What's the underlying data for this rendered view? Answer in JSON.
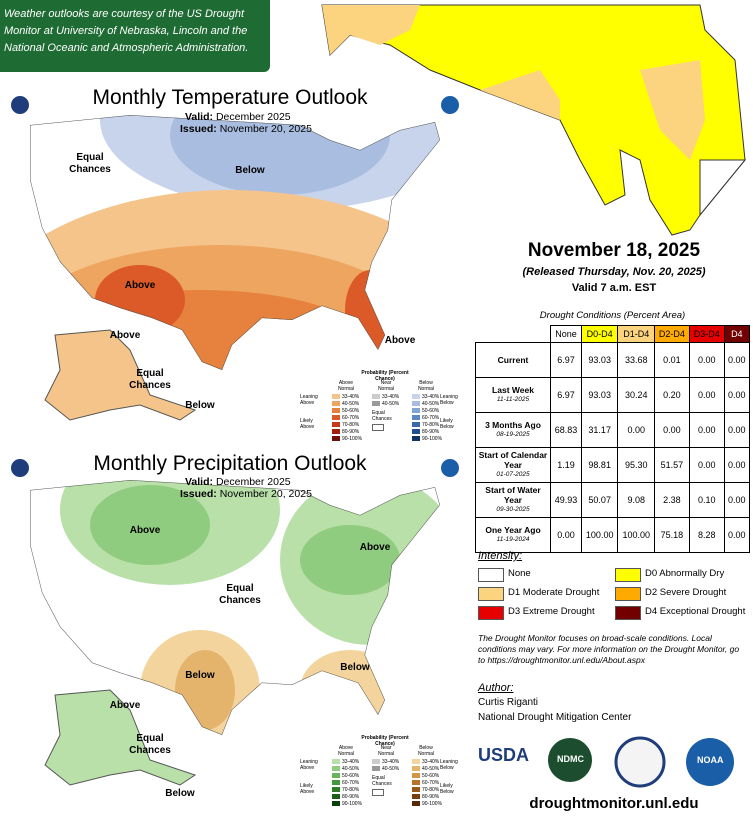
{
  "banner": "Weather outlooks are courtesy of the US Drought Monitor at University of Nebraska, Lincoln and the National Oceanic and Atmospheric Administration.",
  "outlook_legend": {
    "title": "Probability (Percent Chance)",
    "columns": [
      "Above Normal",
      "Near Normal",
      "Below Normal"
    ],
    "above_ranges": [
      "33-40%",
      "40-50%",
      "50-60%",
      "60-70%",
      "70-80%",
      "80-90%",
      "90-100%"
    ],
    "near_ranges": [
      "33-40%",
      "40-50%"
    ],
    "below_ranges": [
      "33-40%",
      "40-50%",
      "50-60%",
      "60-70%",
      "70-80%",
      "80-90%",
      "90-100%"
    ],
    "equal": "Equal Chances",
    "leaning_above": "Leaning Above",
    "likely_above": "Likely Above",
    "leaning_below": "Leaning Below",
    "likely_below": "Likely Below"
  },
  "temperature": {
    "title": "Monthly Temperature Outlook",
    "valid_label": "Valid:",
    "valid": "December 2025",
    "issued_label": "Issued:",
    "issued": "November 20, 2025",
    "labels": [
      "Equal Chances",
      "Below",
      "Above",
      "Above",
      "Equal Chances",
      "Above",
      "Below"
    ],
    "legend_colors": {
      "above": [
        "#f4c48a",
        "#eea560",
        "#e6823d",
        "#dc5a28",
        "#c8391a",
        "#a02010",
        "#701008"
      ],
      "near": [
        "#cccccc",
        "#999999"
      ],
      "below": [
        "#c8d4ec",
        "#a8bde0",
        "#84a4d4",
        "#5c88c4",
        "#3a6aae",
        "#22508e",
        "#103466"
      ]
    }
  },
  "precipitation": {
    "title": "Monthly Precipitation Outlook",
    "valid_label": "Valid:",
    "valid": "December 2025",
    "issued_label": "Issued:",
    "issued": "November 20, 2025",
    "labels": [
      "Above",
      "Above",
      "Equal Chances",
      "Below",
      "Below",
      "Above",
      "Equal Chances",
      "Below"
    ],
    "legend_colors": {
      "above": [
        "#b8e0a8",
        "#90cc80",
        "#68b45c",
        "#46983e",
        "#2e7a28",
        "#1c5e18",
        "#0c400a"
      ],
      "near": [
        "#cccccc",
        "#999999"
      ],
      "below": [
        "#f2d49c",
        "#e4b46c",
        "#d49444",
        "#b87428",
        "#985818",
        "#783e0c",
        "#582806"
      ]
    }
  },
  "drought": {
    "date": "November 18, 2025",
    "released": "(Released Thursday, Nov. 20, 2025)",
    "valid": "Valid 7 a.m. EST",
    "table_title": "Drought Conditions (Percent Area)",
    "headers": [
      "None",
      "D0-D4",
      "D1-D4",
      "D2-D4",
      "D3-D4",
      "D4"
    ],
    "rows": [
      {
        "label": "Current",
        "values": [
          "6.97",
          "93.03",
          "33.68",
          "0.01",
          "0.00",
          "0.00"
        ]
      },
      {
        "label": "Last Week",
        "date": "11-11-2025",
        "values": [
          "6.97",
          "93.03",
          "30.24",
          "0.20",
          "0.00",
          "0.00"
        ]
      },
      {
        "label": "3 Months Ago",
        "date": "08-19-2025",
        "values": [
          "68.83",
          "31.17",
          "0.00",
          "0.00",
          "0.00",
          "0.00"
        ]
      },
      {
        "label": "Start of Calendar Year",
        "date": "01-07-2025",
        "values": [
          "1.19",
          "98.81",
          "95.30",
          "51.57",
          "0.00",
          "0.00"
        ]
      },
      {
        "label": "Start of Water Year",
        "date": "09-30-2025",
        "values": [
          "49.93",
          "50.07",
          "9.08",
          "2.38",
          "0.10",
          "0.00"
        ]
      },
      {
        "label": "One Year Ago",
        "date": "11-19-2024",
        "values": [
          "0.00",
          "100.00",
          "100.00",
          "75.18",
          "8.28",
          "0.00"
        ]
      }
    ],
    "intensity_title": "Intensity:",
    "intensity": [
      {
        "label": "None",
        "color": "#ffffff"
      },
      {
        "label": "D0 Abnormally Dry",
        "color": "#ffff00"
      },
      {
        "label": "D1 Moderate Drought",
        "color": "#fcd37f"
      },
      {
        "label": "D2 Severe Drought",
        "color": "#ffaa00"
      },
      {
        "label": "D3 Extreme Drought",
        "color": "#e60000"
      },
      {
        "label": "D4 Exceptional Drought",
        "color": "#730000"
      }
    ],
    "note": "The Drought Monitor focuses on broad-scale conditions. Local conditions may vary. For more information on the Drought Monitor, go to https://droughtmonitor.unl.edu/About.aspx",
    "author_label": "Author:",
    "author": "Curtis Riganti",
    "organization": "National Drought Mitigation Center",
    "logos": [
      "USDA",
      "NDMC",
      "NOAA"
    ],
    "url": "droughtmonitor.unl.edu"
  }
}
